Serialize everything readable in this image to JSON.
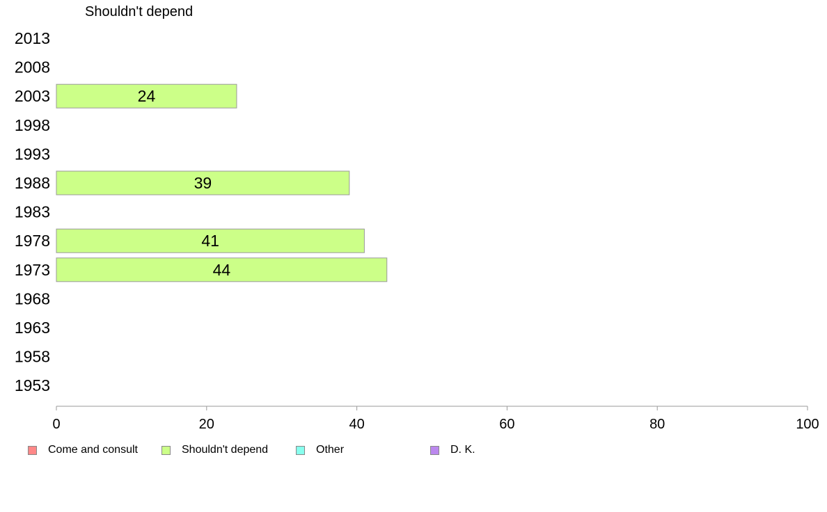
{
  "chart_data": {
    "type": "bar",
    "orientation": "horizontal",
    "title": "Shouldn't depend",
    "categories": [
      "2013",
      "2008",
      "2003",
      "1998",
      "1993",
      "1988",
      "1983",
      "1978",
      "1973",
      "1968",
      "1963",
      "1958",
      "1953"
    ],
    "series": [
      {
        "name": "Shouldn't depend",
        "color": "#ccff88",
        "values": [
          null,
          null,
          24,
          null,
          null,
          39,
          null,
          41,
          44,
          null,
          null,
          null,
          null
        ],
        "labels": [
          "",
          "",
          "24",
          "",
          "",
          "39",
          "",
          "41",
          "44",
          "",
          "",
          "",
          ""
        ]
      }
    ],
    "xlim": [
      0,
      100
    ],
    "xticks": [
      "0",
      "20",
      "40",
      "60",
      "80",
      "100"
    ],
    "grid": false,
    "legend_position": "bottom-left",
    "legend": [
      {
        "name": "Come and consult",
        "color": "#ff8888"
      },
      {
        "name": "Shouldn't depend",
        "color": "#ccff88"
      },
      {
        "name": "Other",
        "color": "#88ffee"
      },
      {
        "name": "D. K.",
        "color": "#bb88ee"
      }
    ]
  }
}
